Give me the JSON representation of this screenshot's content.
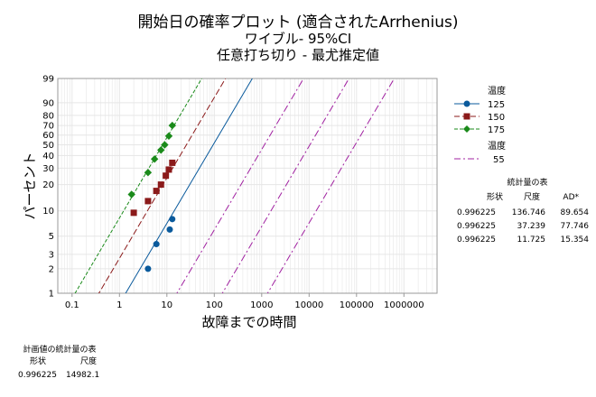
{
  "header": {
    "title": "開始日の確率プロット (適合されたArrhenius)",
    "subtitle1": "ワイブル- 95%CI",
    "subtitle2": "任意打ち切り - 最尤推定値"
  },
  "colors": {
    "s125": "#0a5a9c",
    "s150": "#8b1a1a",
    "s175": "#1a8a1a",
    "s55": "#a020a0",
    "grid": "#e6e6e6",
    "frame": "#999999"
  },
  "legend": {
    "title1": "温度",
    "items": [
      "125",
      "150",
      "175"
    ],
    "title2": "温度",
    "item55": "55"
  },
  "stats_table": {
    "title": "統計量の表",
    "headers": [
      "形状",
      "尺度",
      "AD*"
    ],
    "rows": [
      [
        "0.996225",
        "136.746",
        "89.654"
      ],
      [
        "0.996225",
        "37.239",
        "77.746"
      ],
      [
        "0.996225",
        "11.725",
        "15.354"
      ]
    ]
  },
  "planned_table": {
    "title": "計画値の統計量の表",
    "headers": [
      "形状",
      "尺度"
    ],
    "row": [
      "0.996225",
      "14982.1"
    ]
  },
  "chart_data": {
    "type": "scatter",
    "xlabel": "故障までの時間",
    "ylabel": "パーセント",
    "x_scale": "log",
    "y_scale": "weibull",
    "xlim": [
      0.05,
      5000000
    ],
    "ylim": [
      1,
      99
    ],
    "x_ticks": [
      0.1,
      1,
      10,
      100,
      1000,
      10000,
      100000,
      1000000
    ],
    "x_tick_labels": [
      "0.1",
      "1",
      "10",
      "100",
      "1000",
      "10000",
      "100000",
      "1000000"
    ],
    "y_ticks": [
      1,
      2,
      3,
      5,
      10,
      20,
      30,
      40,
      50,
      60,
      70,
      80,
      90,
      99
    ],
    "y_tick_labels": [
      "1",
      "2",
      "3",
      "5",
      "10",
      "20",
      "30",
      "40",
      "50",
      "60",
      "70",
      "80",
      "90",
      "99"
    ],
    "grid": true,
    "legend_position": "right",
    "shape": 0.996225,
    "series": [
      {
        "name": "125",
        "marker": "circle",
        "line": "solid",
        "scale": 136.746,
        "points": [
          [
            4,
            2
          ],
          [
            6,
            4
          ],
          [
            11.5,
            6
          ],
          [
            13,
            8
          ]
        ]
      },
      {
        "name": "150",
        "marker": "square",
        "line": "dashed",
        "scale": 37.239,
        "points": [
          [
            2,
            9.5
          ],
          [
            4,
            13
          ],
          [
            6,
            17
          ],
          [
            7.5,
            20
          ],
          [
            9.5,
            25
          ],
          [
            11,
            29
          ],
          [
            13,
            34
          ]
        ]
      },
      {
        "name": "175",
        "marker": "diamond",
        "line": "dashed",
        "scale": 11.725,
        "points": [
          [
            1.8,
            15.5
          ],
          [
            4,
            27
          ],
          [
            5.5,
            37
          ],
          [
            7.5,
            45
          ],
          [
            9,
            50
          ],
          [
            11,
            59
          ],
          [
            13,
            70
          ]
        ]
      },
      {
        "name": "55",
        "marker": "none",
        "line": "dashdot",
        "scale": 14982.1,
        "points": []
      }
    ]
  }
}
